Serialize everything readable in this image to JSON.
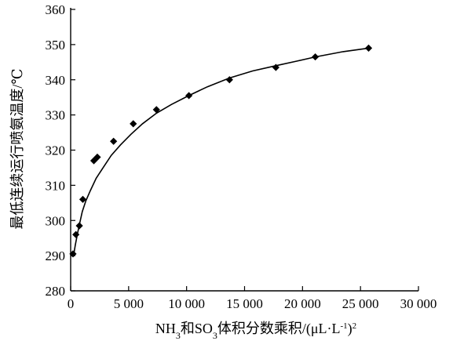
{
  "chart_data": {
    "type": "scatter",
    "title": "",
    "xlabel": {
      "prefix": "NH",
      "sub1": "3",
      "mid": "和SO",
      "sub2": "3",
      "rest": "体积分数乘积/(μL·L",
      "sup1": "-1",
      "close": ")",
      "sup2": "2"
    },
    "ylabel": "最低连续运行喷氨温度/℃",
    "xlim": [
      0,
      30000
    ],
    "ylim": [
      280,
      360
    ],
    "xticks": [
      0,
      5000,
      10000,
      15000,
      20000,
      25000,
      30000
    ],
    "xtick_labels": [
      "0",
      "5 000",
      "10 000",
      "15 000",
      "20 000",
      "25 000",
      "30 000"
    ],
    "yticks": [
      280,
      290,
      300,
      310,
      320,
      330,
      340,
      350,
      360
    ],
    "ytick_labels": [
      "280",
      "290",
      "300",
      "310",
      "320",
      "330",
      "340",
      "350",
      "360"
    ],
    "grid": false,
    "series": [
      {
        "marker": "diamond",
        "color": "#000000",
        "x": [
          200,
          450,
          750,
          1050,
          2000,
          2300,
          3700,
          5400,
          7400,
          10200,
          13700,
          17700,
          21100,
          25700
        ],
        "y": [
          290.5,
          296,
          298.5,
          306,
          317,
          318,
          322.5,
          327.5,
          331.5,
          335.5,
          340,
          343.5,
          346.5,
          349
        ]
      },
      {
        "type": "line",
        "color": "#000000",
        "x": [
          250,
          400,
          600,
          800,
          1000,
          1300,
          1700,
          2200,
          2800,
          3500,
          4300,
          5200,
          6200,
          7400,
          8700,
          10200,
          11800,
          13700,
          15700,
          17700,
          19500,
          21100,
          23500,
          25700
        ],
        "y": [
          290,
          293,
          296.5,
          299.5,
          302.5,
          305.5,
          308.5,
          312,
          315,
          318.5,
          321.5,
          324.5,
          327.5,
          330.5,
          333,
          335.5,
          338,
          340.5,
          342.5,
          344,
          345.3,
          346.5,
          348,
          349
        ]
      }
    ]
  }
}
